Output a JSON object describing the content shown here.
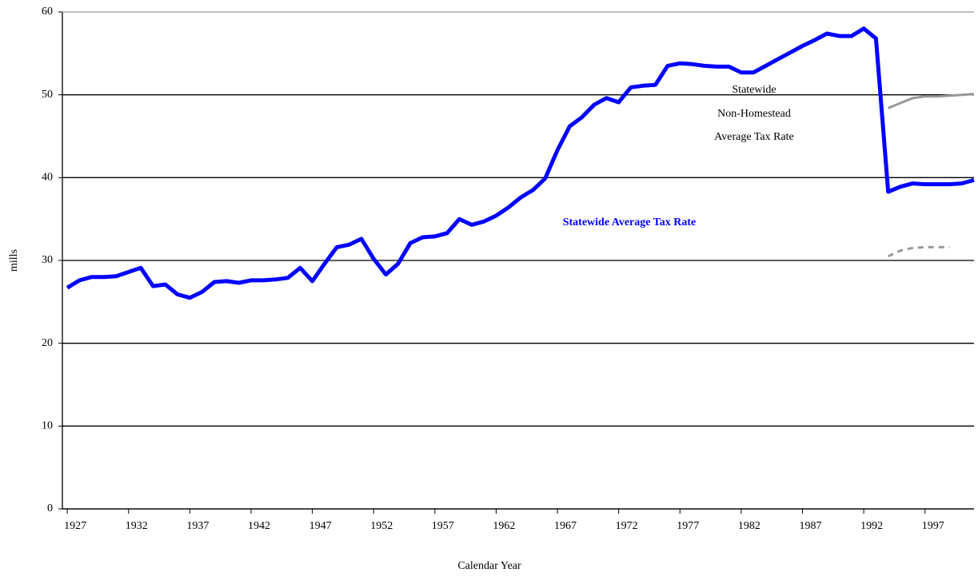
{
  "chart_data": {
    "type": "line",
    "xlabel": "Calendar Year",
    "ylabel": "mills",
    "x": [
      1927,
      1928,
      1929,
      1930,
      1931,
      1932,
      1933,
      1934,
      1935,
      1936,
      1937,
      1938,
      1939,
      1940,
      1941,
      1942,
      1943,
      1944,
      1945,
      1946,
      1947,
      1948,
      1949,
      1950,
      1951,
      1952,
      1953,
      1954,
      1955,
      1956,
      1957,
      1958,
      1959,
      1960,
      1961,
      1962,
      1963,
      1964,
      1965,
      1966,
      1967,
      1968,
      1969,
      1970,
      1971,
      1972,
      1973,
      1974,
      1975,
      1976,
      1977,
      1978,
      1979,
      1980,
      1981,
      1982,
      1983,
      1984,
      1985,
      1986,
      1987,
      1988,
      1989,
      1990,
      1991,
      1992,
      1993,
      1994,
      1995,
      1996,
      1997,
      1998,
      1999,
      2000,
      2001
    ],
    "series": [
      {
        "color": "#0000ff",
        "width": 5,
        "values": [
          26.7,
          27.6,
          28.0,
          28.0,
          28.1,
          28.6,
          29.1,
          26.9,
          27.1,
          25.9,
          25.5,
          26.2,
          27.4,
          27.5,
          27.3,
          27.6,
          27.6,
          27.7,
          27.9,
          29.1,
          27.5,
          29.6,
          31.6,
          31.9,
          32.6,
          30.2,
          28.3,
          29.6,
          32.1,
          32.8,
          32.9,
          33.3,
          35.0,
          34.3,
          34.7,
          35.4,
          36.4,
          37.6,
          38.5,
          39.9,
          43.3,
          46.2,
          47.3,
          48.8,
          49.6,
          49.1,
          50.9,
          51.1,
          51.2,
          53.5,
          53.8,
          53.7,
          53.5,
          53.4,
          53.4,
          52.7,
          52.7,
          53.5,
          54.3,
          55.1,
          55.9,
          56.6,
          57.4,
          57.1,
          57.1,
          58.0,
          56.8,
          38.3,
          38.9,
          39.3,
          39.2,
          39.2,
          39.2,
          39.3,
          39.7
        ]
      },
      {
        "color": "#999999",
        "width": 3,
        "x": [
          1994,
          1995,
          1996,
          1997,
          1998,
          1999,
          2000,
          2001
        ],
        "values": [
          48.4,
          49.0,
          49.6,
          49.8,
          49.8,
          49.9,
          50.0,
          50.1
        ]
      },
      {
        "color": "#999999",
        "width": 3,
        "dash": true,
        "x": [
          1994,
          1995,
          1996,
          1997,
          1998,
          1999
        ],
        "values": [
          30.5,
          31.2,
          31.5,
          31.6,
          31.6,
          31.6
        ]
      }
    ],
    "annotations": [
      {
        "text": "Statewide Average Tax Rate",
        "color": "#0000ff"
      },
      {
        "lines": [
          "Statewide",
          "Non-Homestead",
          "Average Tax Rate"
        ]
      }
    ],
    "xlim": [
      1926.6,
      2001
    ],
    "xticks": [
      1927,
      1932,
      1937,
      1942,
      1947,
      1952,
      1957,
      1962,
      1967,
      1972,
      1977,
      1982,
      1987,
      1992,
      1997
    ],
    "ylim": [
      0,
      60
    ],
    "yticks": [
      0,
      10,
      20,
      30,
      40,
      50,
      60
    ],
    "grid": true
  }
}
